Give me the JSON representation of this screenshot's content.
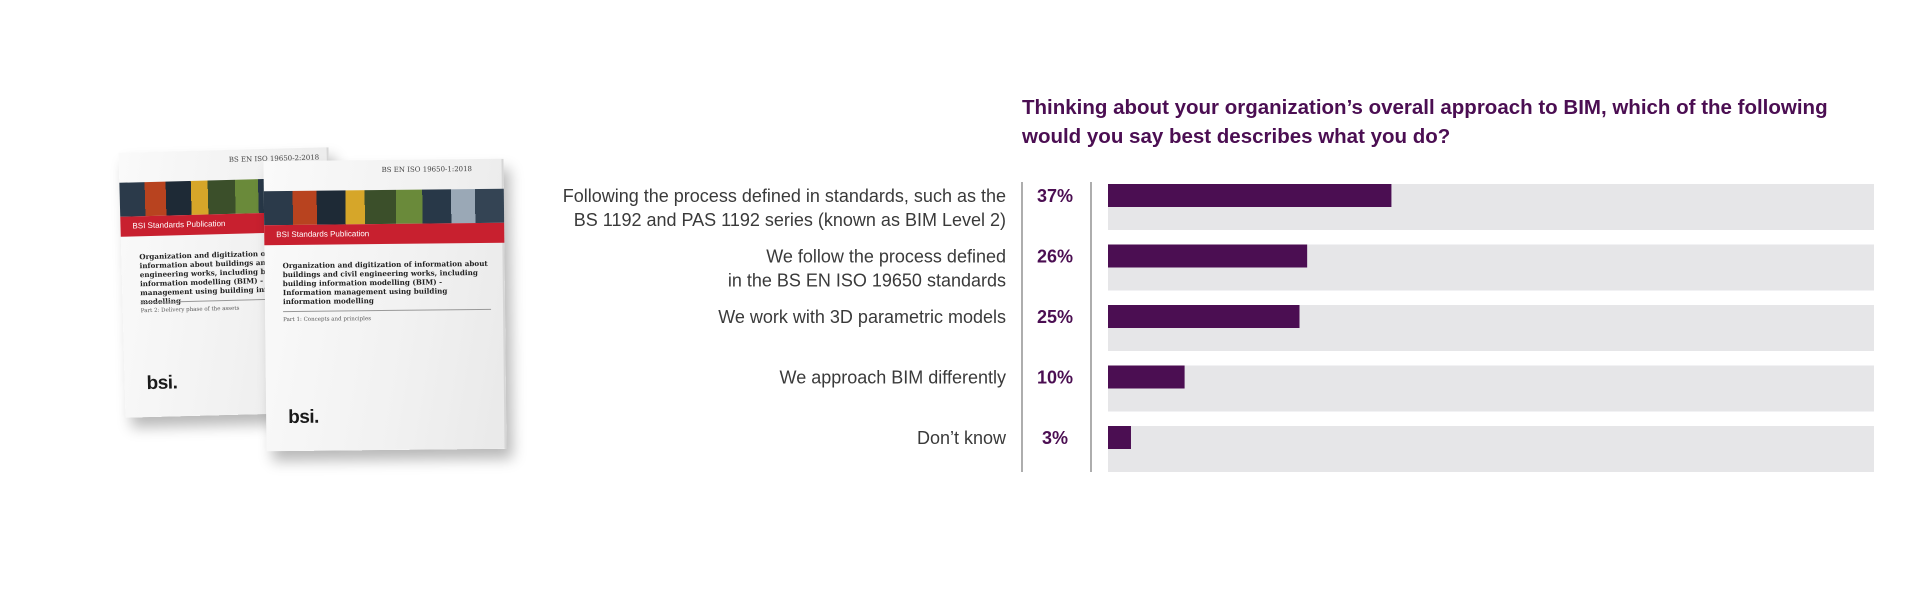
{
  "books": [
    {
      "ref": "BS EN ISO 19650-2:2018",
      "band": "BSI Standards Publication",
      "title": "Organization and digitization of information about buildings and civil engineering works, including building information modelling (BIM) - Information management using building information modelling",
      "part": "Part 2: Delivery phase of the assets",
      "logo": "bsi."
    },
    {
      "ref": "BS EN ISO 19650-1:2018",
      "band": "BSI Standards Publication",
      "title": "Organization and digitization of information about buildings and civil engineering works, including building information modelling (BIM) - Information management using building information modelling",
      "part": "Part 1: Concepts and principles",
      "logo": "bsi."
    }
  ],
  "colors": {
    "bar": "#4b0e52",
    "track": "#e6e6e8",
    "axis": "#777777"
  },
  "chart_data": {
    "type": "bar",
    "orientation": "horizontal",
    "title": "Thinking about your organization’s overall approach to BIM, which of the following would you say best describes what you do?",
    "categories": [
      [
        "Following the process defined in standards, such as the",
        "BS 1192 and PAS 1192 series (known as BIM Level 2)"
      ],
      [
        "We follow the process defined",
        "in the BS EN ISO 19650 standards"
      ],
      [
        "We work with 3D parametric models"
      ],
      [
        "We approach BIM differently"
      ],
      [
        "Don’t know"
      ]
    ],
    "values": [
      37,
      26,
      25,
      10,
      3
    ],
    "value_labels": [
      "37%",
      "26%",
      "25%",
      "10%",
      "3%"
    ],
    "unit": "%",
    "xlim": [
      0,
      100
    ],
    "grid": false,
    "legend": "none"
  }
}
